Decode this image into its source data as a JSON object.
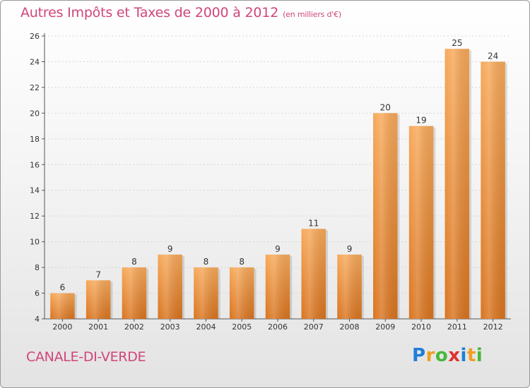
{
  "header": {
    "title": "Autres Impôts et Taxes de 2000 à 2012",
    "subtitle": "(en milliers d'€)"
  },
  "footer": {
    "commune": "CANALE-DI-VERDE",
    "logo_letters": [
      {
        "ch": "P",
        "color": "#1e7fd8"
      },
      {
        "ch": "r",
        "color": "#f0a020"
      },
      {
        "ch": "o",
        "color": "#48b83a"
      },
      {
        "ch": "x",
        "color": "#e03030"
      },
      {
        "ch": "i",
        "color": "#1e7fd8"
      },
      {
        "ch": "t",
        "color": "#f0a020"
      },
      {
        "ch": "i",
        "color": "#48b83a"
      }
    ]
  },
  "colors": {
    "title": "#d0457a",
    "bar_light": "#f7a95a",
    "bar_dark": "#d9741f",
    "axis": "#555555",
    "grid": "#d6d6d6"
  },
  "chart_data": {
    "type": "bar",
    "categories": [
      "2000",
      "2001",
      "2002",
      "2003",
      "2004",
      "2005",
      "2006",
      "2007",
      "2008",
      "2009",
      "2010",
      "2011",
      "2012"
    ],
    "values": [
      6,
      7,
      8,
      9,
      8,
      8,
      9,
      11,
      9,
      20,
      19,
      25,
      24
    ],
    "ylim": [
      4,
      26
    ],
    "yticks": [
      4,
      6,
      8,
      10,
      12,
      14,
      16,
      18,
      20,
      22,
      24,
      26
    ],
    "xlabel": "",
    "ylabel": "",
    "grid": true
  }
}
